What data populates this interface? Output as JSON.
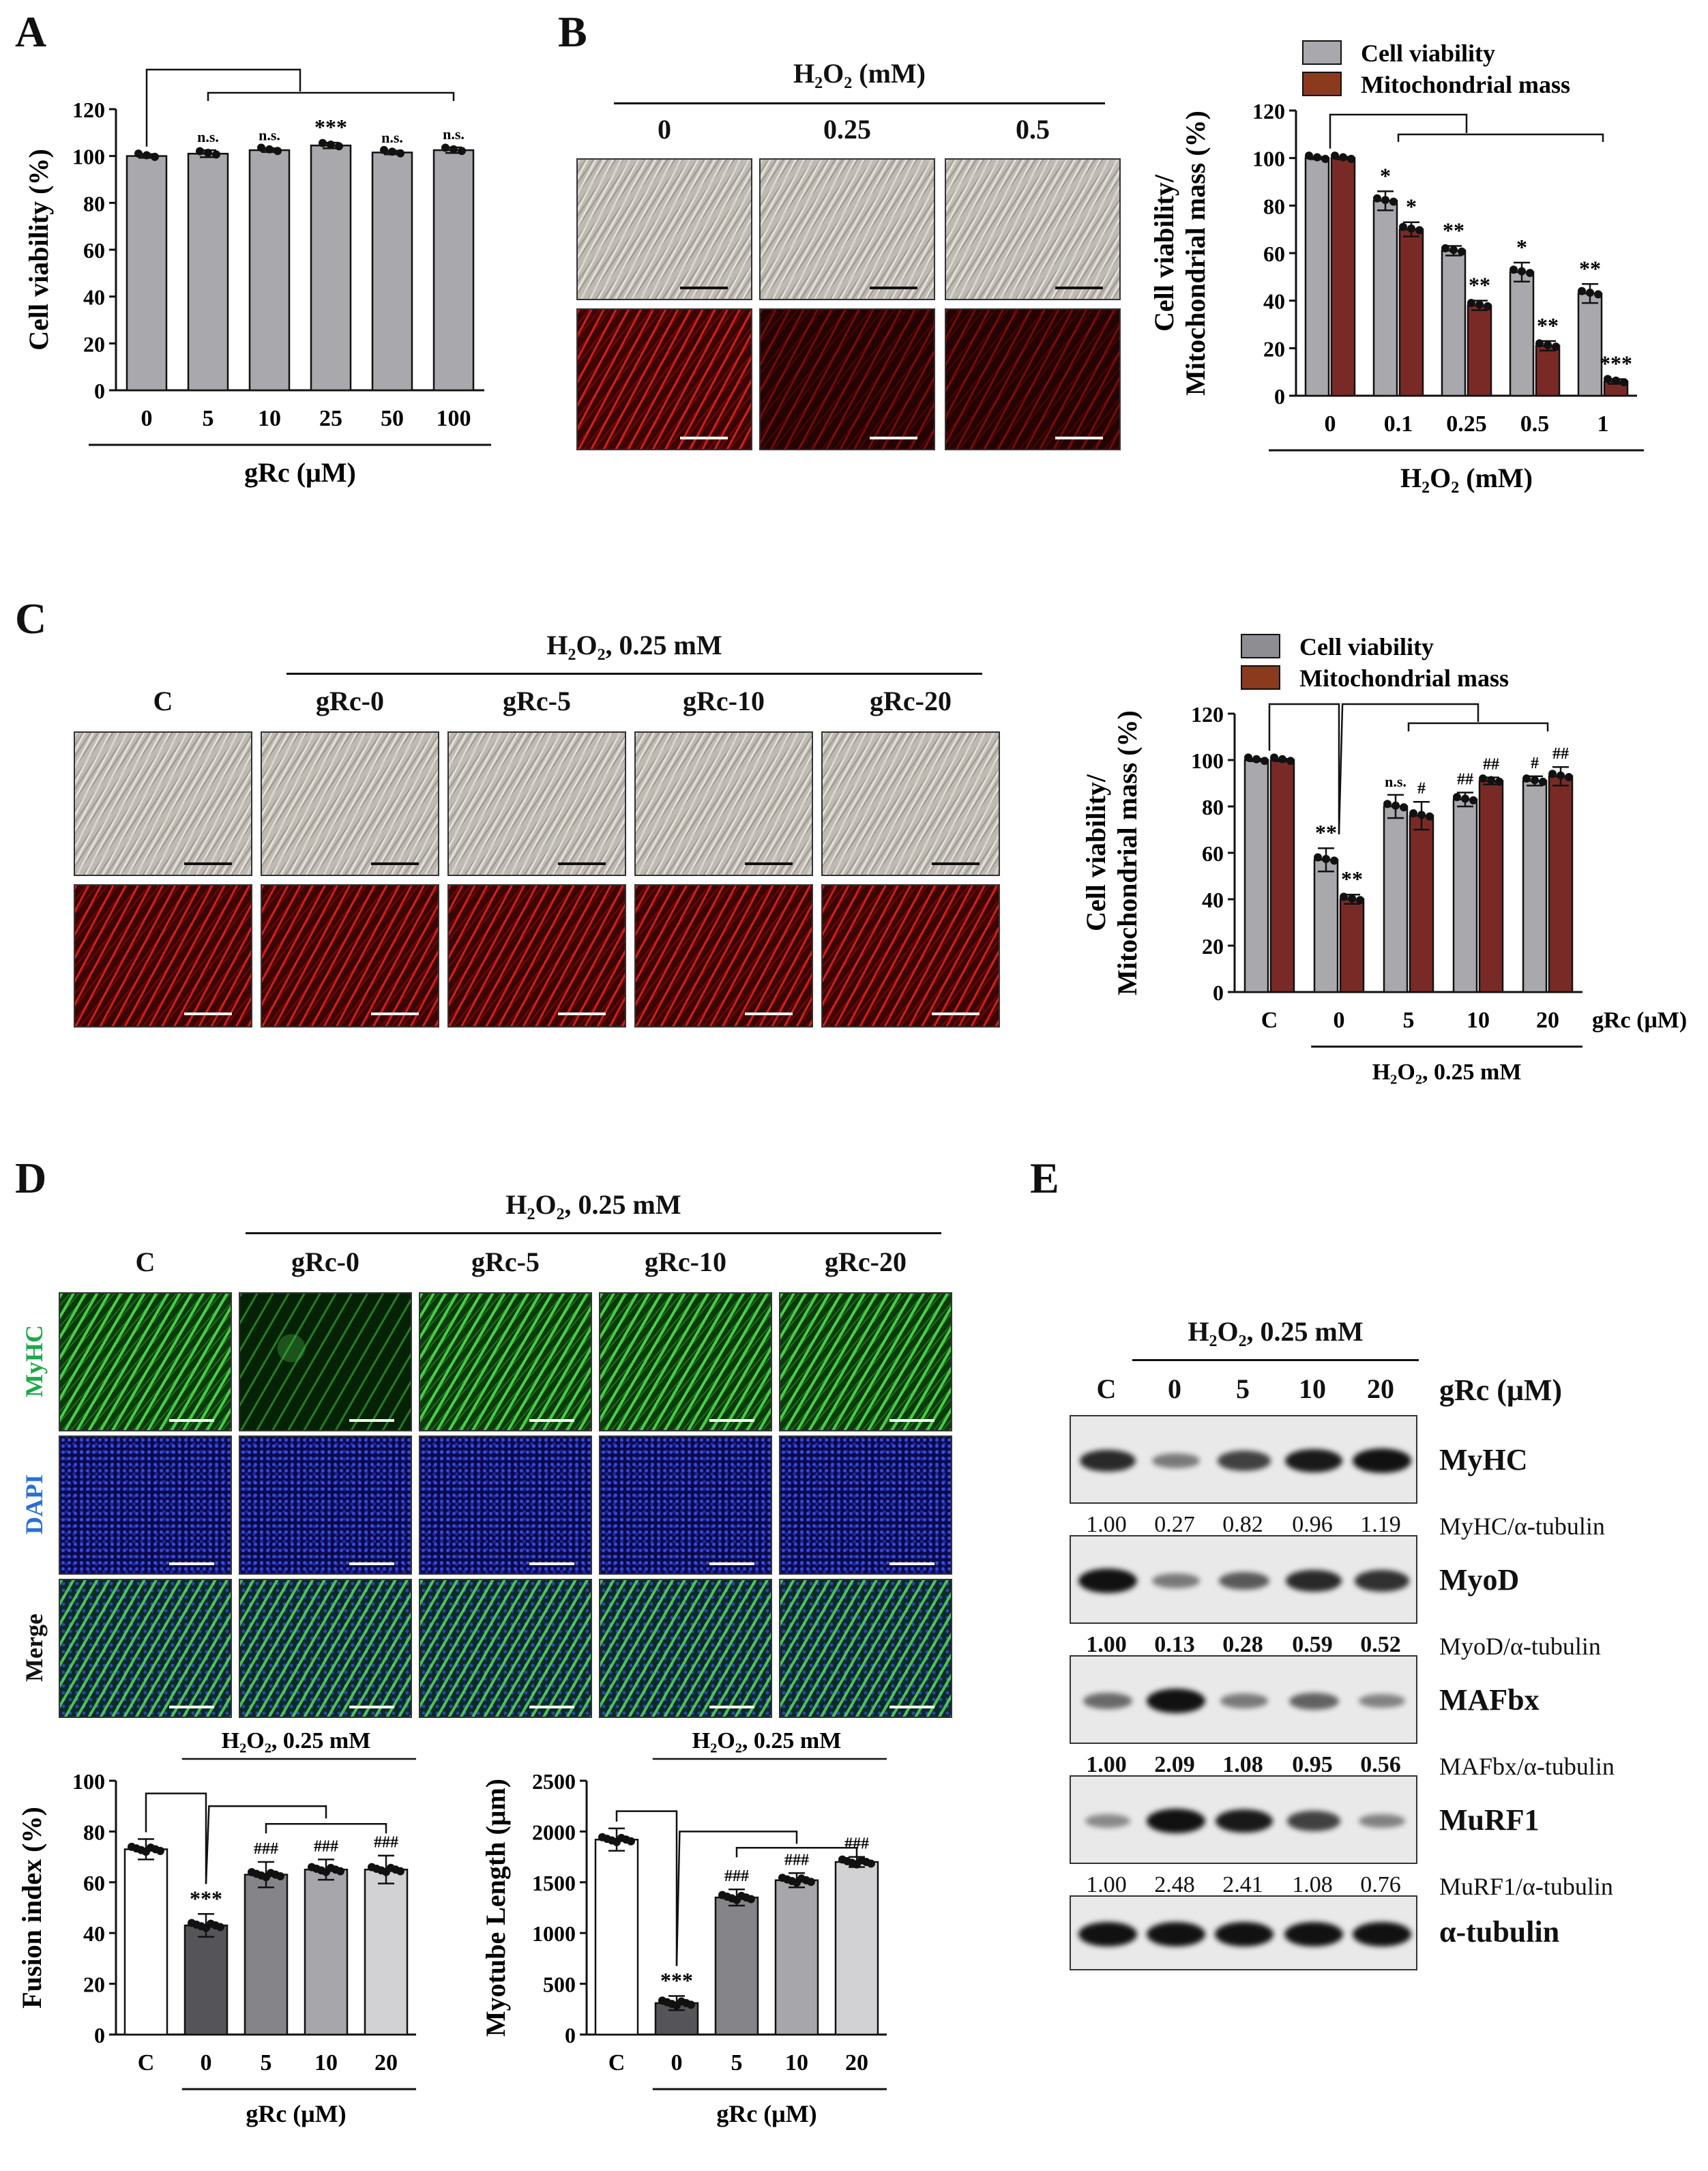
{
  "panel_labels": {
    "A": "A",
    "B": "B",
    "C": "C",
    "D": "D",
    "E": "E"
  },
  "colors": {
    "grey_bar": "#a9a9ad",
    "dark_grey_bar": "#8e8e92",
    "red_bar": "#7a2a26",
    "brown_legend": "#8b3a1e",
    "green_label": "#1ea84a",
    "blue_label": "#2a6fd6"
  },
  "panel_b_images": {
    "header": "H₂O₂ (mM)",
    "columns": [
      "0",
      "0.25",
      "0.5"
    ]
  },
  "panel_c_images": {
    "header": "H₂O₂, 0.25 mM",
    "columns": [
      "C",
      "gRc-0",
      "gRc-5",
      "gRc-10",
      "gRc-20"
    ]
  },
  "panel_d_images": {
    "header": "H₂O₂, 0.25 mM",
    "columns": [
      "C",
      "gRc-0",
      "gRc-5",
      "gRc-10",
      "gRc-20"
    ],
    "rows": [
      "MyHC",
      "DAPI",
      "Merge"
    ]
  },
  "panel_e": {
    "header": "H₂O₂, 0.25 mM",
    "lanes": [
      "C",
      "0",
      "5",
      "10",
      "20"
    ],
    "lane_unit": "gRc (μM)",
    "blots": [
      {
        "protein": "MyHC",
        "ratio_label": "MyHC/α-tubulin",
        "values": [
          "1.00",
          "0.27",
          "0.82",
          "0.96",
          "1.19"
        ],
        "bold_values": false
      },
      {
        "protein": "MyoD",
        "ratio_label": "MyoD/α-tubulin",
        "values": [
          "1.00",
          "0.13",
          "0.28",
          "0.59",
          "0.52"
        ],
        "bold_values": true
      },
      {
        "protein": "MAFbx",
        "ratio_label": "MAFbx/α-tubulin",
        "values": [
          "1.00",
          "2.09",
          "1.08",
          "0.95",
          "0.56"
        ],
        "bold_values": true
      },
      {
        "protein": "MuRF1",
        "ratio_label": "MuRF1/α-tubulin",
        "values": [
          "1.00",
          "2.48",
          "2.41",
          "1.08",
          "0.76"
        ],
        "bold_values": false
      },
      {
        "protein": "α-tubulin",
        "ratio_label": "",
        "values": [],
        "bold_values": false
      }
    ]
  },
  "chart_data": [
    {
      "id": "A",
      "type": "bar",
      "categories": [
        "0",
        "5",
        "10",
        "25",
        "50",
        "100"
      ],
      "values": [
        100,
        101,
        102.5,
        104.5,
        101.5,
        102.5
      ],
      "errors": [
        0.8,
        1.5,
        0.8,
        1.2,
        0.8,
        1.2
      ],
      "annotations": [
        "",
        "n.s.",
        "n.s.",
        "***",
        "n.s.",
        "n.s."
      ],
      "ylabel": "Cell viability (%)",
      "xlabel": "gRc (μM)",
      "ylim": [
        0,
        120
      ],
      "yticks": [
        0,
        20,
        40,
        60,
        80,
        100,
        120
      ]
    },
    {
      "id": "B",
      "type": "bar",
      "categories": [
        "0",
        "0.1",
        "0.25",
        "0.5",
        "1"
      ],
      "series": [
        {
          "name": "Cell viability",
          "values": [
            100,
            82,
            61,
            52,
            43
          ],
          "errors": [
            0.5,
            4,
            2,
            4,
            4
          ],
          "annotations": [
            "",
            "*",
            "**",
            "*",
            "**"
          ]
        },
        {
          "name": "Mitochondrial mass",
          "values": [
            100,
            70,
            38,
            21,
            6
          ],
          "errors": [
            0.5,
            3,
            2,
            2,
            1
          ],
          "annotations": [
            "",
            "*",
            "**",
            "**",
            "***"
          ]
        }
      ],
      "ylabel": "Cell viability/ Mitochondrial mass (%)",
      "xlabel": "H₂O₂ (mM)",
      "ylim": [
        0,
        120
      ],
      "yticks": [
        0,
        20,
        40,
        60,
        80,
        100,
        120
      ]
    },
    {
      "id": "C",
      "type": "bar",
      "categories": [
        "C",
        "0",
        "5",
        "10",
        "20"
      ],
      "series": [
        {
          "name": "Cell viability",
          "values": [
            100,
            57,
            80,
            83,
            91
          ],
          "errors": [
            0.5,
            5,
            5,
            3,
            2
          ],
          "annotations": [
            "",
            "**",
            "n.s.",
            "##",
            "#"
          ]
        },
        {
          "name": "Mitochondrial mass",
          "values": [
            100,
            40,
            76,
            91,
            93
          ],
          "errors": [
            0.5,
            2,
            6,
            1.5,
            4
          ],
          "annotations": [
            "",
            "**",
            "#",
            "##",
            "##"
          ]
        }
      ],
      "ylabel": "Cell viability/ Mitochondrial mass (%)",
      "xlabel": "H₂O₂, 0.25 mM",
      "unit_label": "gRc (μM)",
      "ylim": [
        0,
        120
      ],
      "yticks": [
        0,
        20,
        40,
        60,
        80,
        100,
        120
      ]
    },
    {
      "id": "D1",
      "type": "bar",
      "categories": [
        "C",
        "0",
        "5",
        "10",
        "20"
      ],
      "values": [
        73,
        43,
        63,
        65,
        65
      ],
      "errors": [
        4,
        4.5,
        5,
        4,
        5.5
      ],
      "annotations": [
        "",
        "***",
        "###",
        "###",
        "###"
      ],
      "ylabel": "Fusion index (%)",
      "xlabel": "gRc (μM)",
      "header": "H₂O₂, 0.25 mM",
      "ylim": [
        0,
        100
      ],
      "yticks": [
        0,
        20,
        40,
        60,
        80,
        100
      ]
    },
    {
      "id": "D2",
      "type": "bar",
      "categories": [
        "C",
        "0",
        "5",
        "10",
        "20"
      ],
      "values": [
        1920,
        310,
        1350,
        1520,
        1700
      ],
      "errors": [
        110,
        70,
        80,
        70,
        50
      ],
      "annotations": [
        "",
        "***",
        "###",
        "###",
        "###"
      ],
      "ylabel": "Myotube Length (μm)",
      "xlabel": "gRc (μM)",
      "header": "H₂O₂, 0.25 mM",
      "ylim": [
        0,
        2500
      ],
      "yticks": [
        0,
        500,
        1000,
        1500,
        2000,
        2500
      ]
    }
  ]
}
